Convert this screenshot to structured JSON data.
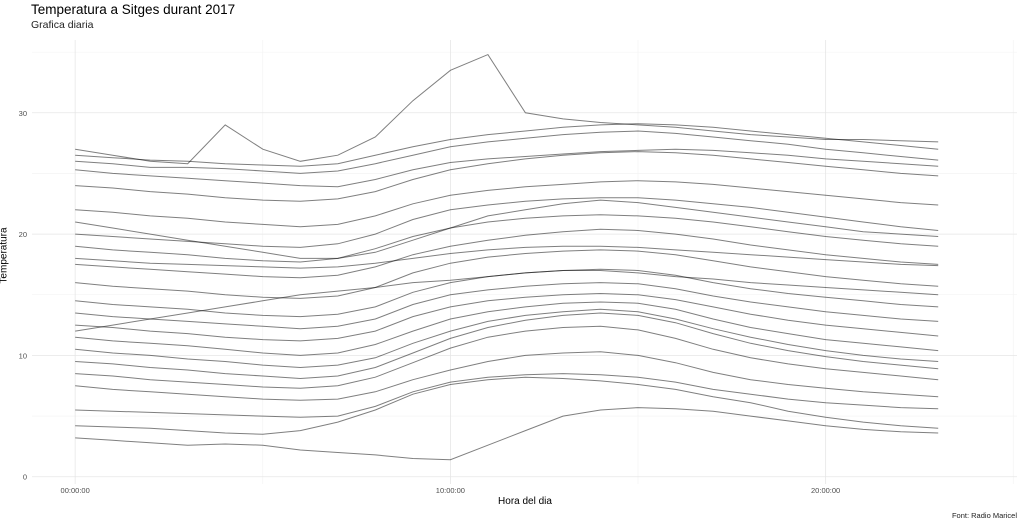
{
  "chart_data": {
    "type": "line",
    "title": "Temperatura a Sitges durant 2017",
    "subtitle": "Grafica diaria",
    "xlabel": "Hora del dia",
    "ylabel": "Temperatura",
    "caption": "Font: Radio Maricel",
    "xlim_hours": [
      -1.15,
      25.1
    ],
    "ylim": [
      -0.6,
      36
    ],
    "x_ticks": [
      {
        "hour": 0,
        "label": "00:00:00"
      },
      {
        "hour": 10,
        "label": "10:00:00"
      },
      {
        "hour": 20,
        "label": "20:00:00"
      }
    ],
    "y_ticks": [
      0,
      10,
      20,
      30
    ],
    "grid": true,
    "line_color": "#000000",
    "line_opacity": 0.5,
    "x": [
      "00:00:00",
      "01:00:00",
      "02:00:00",
      "03:00:00",
      "04:00:00",
      "05:00:00",
      "06:00:00",
      "07:00:00",
      "08:00:00",
      "09:00:00",
      "10:00:00",
      "11:00:00",
      "12:00:00",
      "13:00:00",
      "14:00:00",
      "15:00:00",
      "16:00:00",
      "17:00:00",
      "18:00:00",
      "19:00:00",
      "20:00:00",
      "21:00:00",
      "22:00:00",
      "23:00:00"
    ],
    "series": [
      {
        "values": [
          25.3,
          25.0,
          24.8,
          24.6,
          24.4,
          24.2,
          24.0,
          23.9,
          24.5,
          25.3,
          25.9,
          26.2,
          26.4,
          26.6,
          26.8,
          26.9,
          27.0,
          26.9,
          26.7,
          26.5,
          26.2,
          26.0,
          25.8,
          25.6
        ]
      },
      {
        "values": [
          26.5,
          26.3,
          26.1,
          26.0,
          25.8,
          25.7,
          25.6,
          25.8,
          26.5,
          27.2,
          27.8,
          28.2,
          28.5,
          28.8,
          29.0,
          29.1,
          29.0,
          28.8,
          28.5,
          28.2,
          27.9,
          27.6,
          27.3,
          27.0
        ]
      },
      {
        "values": [
          24.0,
          23.8,
          23.5,
          23.3,
          23.0,
          22.8,
          22.7,
          22.9,
          23.5,
          24.5,
          25.3,
          25.8,
          26.2,
          26.5,
          26.7,
          26.8,
          26.7,
          26.5,
          26.2,
          25.9,
          25.6,
          25.3,
          25.0,
          24.8
        ]
      },
      {
        "values": [
          27.0,
          26.5,
          26.0,
          25.8,
          29.0,
          27.0,
          26.0,
          26.5,
          28.0,
          31.0,
          33.5,
          34.8,
          30.0,
          29.5,
          29.2,
          29.0,
          28.8,
          28.5,
          28.2,
          28.0,
          27.8,
          27.8,
          27.7,
          27.6
        ]
      },
      {
        "values": [
          22.0,
          21.8,
          21.5,
          21.3,
          21.0,
          20.8,
          20.6,
          20.8,
          21.5,
          22.5,
          23.2,
          23.6,
          23.9,
          24.1,
          24.3,
          24.4,
          24.3,
          24.1,
          23.8,
          23.5,
          23.2,
          22.9,
          22.6,
          22.4
        ]
      },
      {
        "values": [
          20.0,
          19.8,
          19.6,
          19.4,
          19.2,
          19.0,
          18.9,
          19.2,
          20.0,
          21.2,
          22.0,
          22.4,
          22.7,
          22.9,
          23.0,
          23.0,
          22.8,
          22.5,
          22.2,
          21.8,
          21.4,
          21.0,
          20.6,
          20.3
        ]
      },
      {
        "values": [
          19.0,
          18.7,
          18.5,
          18.3,
          18.0,
          17.8,
          17.7,
          18.0,
          18.8,
          19.8,
          20.5,
          21.0,
          21.3,
          21.5,
          21.6,
          21.5,
          21.3,
          21.0,
          20.6,
          20.2,
          19.8,
          19.5,
          19.2,
          19.0
        ]
      },
      {
        "values": [
          17.5,
          17.3,
          17.1,
          16.9,
          16.7,
          16.5,
          16.4,
          16.6,
          17.3,
          18.3,
          19.0,
          19.5,
          19.9,
          20.2,
          20.4,
          20.3,
          20.0,
          19.6,
          19.1,
          18.7,
          18.3,
          18.0,
          17.7,
          17.5
        ]
      },
      {
        "values": [
          16.0,
          15.7,
          15.5,
          15.3,
          15.0,
          14.8,
          14.7,
          14.9,
          15.6,
          16.8,
          17.6,
          18.1,
          18.4,
          18.6,
          18.7,
          18.6,
          18.3,
          17.8,
          17.3,
          16.9,
          16.5,
          16.2,
          15.9,
          15.7
        ]
      },
      {
        "values": [
          14.5,
          14.2,
          14.0,
          13.8,
          13.5,
          13.3,
          13.2,
          13.4,
          14.0,
          15.2,
          16.0,
          16.5,
          16.8,
          17.0,
          17.1,
          17.0,
          16.6,
          16.0,
          15.5,
          15.1,
          14.8,
          14.5,
          14.2,
          14.0
        ]
      },
      {
        "values": [
          13.5,
          13.2,
          13.0,
          12.8,
          12.6,
          12.4,
          12.2,
          12.4,
          13.0,
          14.2,
          15.0,
          15.4,
          15.7,
          15.9,
          16.0,
          15.9,
          15.5,
          14.9,
          14.4,
          14.0,
          13.6,
          13.3,
          13.0,
          12.8
        ]
      },
      {
        "values": [
          12.5,
          12.3,
          12.0,
          11.8,
          11.5,
          11.3,
          11.2,
          11.4,
          12.0,
          13.2,
          14.0,
          14.5,
          14.8,
          15.0,
          15.1,
          15.0,
          14.6,
          14.0,
          13.4,
          12.9,
          12.5,
          12.2,
          11.9,
          11.6
        ]
      },
      {
        "values": [
          11.5,
          11.2,
          11.0,
          10.8,
          10.5,
          10.2,
          10.0,
          10.2,
          10.9,
          12.0,
          13.0,
          13.6,
          14.0,
          14.3,
          14.4,
          14.3,
          13.8,
          13.0,
          12.3,
          11.8,
          11.3,
          11.0,
          10.7,
          10.4
        ]
      },
      {
        "values": [
          10.5,
          10.2,
          10.0,
          9.7,
          9.5,
          9.2,
          9.0,
          9.2,
          9.8,
          11.0,
          12.0,
          12.8,
          13.3,
          13.6,
          13.8,
          13.6,
          13.0,
          12.2,
          11.5,
          10.9,
          10.4,
          10.0,
          9.7,
          9.5
        ]
      },
      {
        "values": [
          9.5,
          9.3,
          9.0,
          8.8,
          8.5,
          8.3,
          8.1,
          8.3,
          9.0,
          10.2,
          11.4,
          12.3,
          12.9,
          13.3,
          13.5,
          13.3,
          12.7,
          11.8,
          11.0,
          10.4,
          9.9,
          9.5,
          9.2,
          8.9
        ]
      },
      {
        "values": [
          8.5,
          8.3,
          8.0,
          7.8,
          7.6,
          7.4,
          7.3,
          7.5,
          8.2,
          9.4,
          10.6,
          11.5,
          12.0,
          12.3,
          12.4,
          12.1,
          11.4,
          10.5,
          9.8,
          9.3,
          8.9,
          8.6,
          8.3,
          8.0
        ]
      },
      {
        "values": [
          7.5,
          7.2,
          7.0,
          6.8,
          6.6,
          6.4,
          6.3,
          6.4,
          7.0,
          8.0,
          8.8,
          9.5,
          10.0,
          10.2,
          10.3,
          10.0,
          9.4,
          8.6,
          8.0,
          7.6,
          7.3,
          7.0,
          6.8,
          6.6
        ]
      },
      {
        "values": [
          5.5,
          5.4,
          5.3,
          5.2,
          5.1,
          5.0,
          4.9,
          5.0,
          5.8,
          7.0,
          7.8,
          8.2,
          8.4,
          8.5,
          8.4,
          8.2,
          7.8,
          7.2,
          6.8,
          6.4,
          6.1,
          5.9,
          5.7,
          5.6
        ]
      },
      {
        "values": [
          4.2,
          4.1,
          4.0,
          3.8,
          3.6,
          3.5,
          3.8,
          4.5,
          5.5,
          6.8,
          7.6,
          8.0,
          8.2,
          8.1,
          7.9,
          7.6,
          7.2,
          6.6,
          6.1,
          5.4,
          4.9,
          4.5,
          4.2,
          4.0
        ]
      },
      {
        "values": [
          3.2,
          3.0,
          2.8,
          2.6,
          2.7,
          2.6,
          2.2,
          2.0,
          1.8,
          1.5,
          1.4,
          2.6,
          3.8,
          5.0,
          5.5,
          5.7,
          5.6,
          5.4,
          5.0,
          4.6,
          4.2,
          3.9,
          3.7,
          3.6
        ]
      },
      {
        "values": [
          21.0,
          20.5,
          20.0,
          19.5,
          19.0,
          18.5,
          18.0,
          18.0,
          18.5,
          19.5,
          20.5,
          21.5,
          22.0,
          22.5,
          22.8,
          22.6,
          22.2,
          21.8,
          21.4,
          21.0,
          20.6,
          20.2,
          20.0,
          19.8
        ]
      },
      {
        "values": [
          18.0,
          17.8,
          17.6,
          17.5,
          17.4,
          17.3,
          17.2,
          17.3,
          17.6,
          18.0,
          18.4,
          18.7,
          18.9,
          19.0,
          19.0,
          18.9,
          18.7,
          18.5,
          18.3,
          18.1,
          17.9,
          17.7,
          17.5,
          17.4
        ]
      },
      {
        "values": [
          12.0,
          12.5,
          13.0,
          13.5,
          14.0,
          14.5,
          15.0,
          15.3,
          15.6,
          16.0,
          16.2,
          16.5,
          16.8,
          17.0,
          17.0,
          16.8,
          16.5,
          16.3,
          16.0,
          15.8,
          15.6,
          15.4,
          15.2,
          15.0
        ]
      },
      {
        "values": [
          26.0,
          25.8,
          25.5,
          25.5,
          25.4,
          25.2,
          25.0,
          25.2,
          25.8,
          26.5,
          27.2,
          27.6,
          27.9,
          28.2,
          28.4,
          28.5,
          28.3,
          28.0,
          27.7,
          27.4,
          27.0,
          26.7,
          26.4,
          26.1
        ]
      }
    ]
  }
}
